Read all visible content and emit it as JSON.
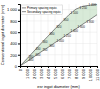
{
  "chart_data": {
    "type": "area",
    "xlabel": "esr ingot diameter (mm)",
    "ylabel": "Conventional ingot diameter (mm)",
    "x": [
      0,
      1000,
      2000,
      3000,
      4000,
      5000,
      6000,
      7000,
      8000,
      9000,
      10000,
      11000
    ],
    "series": [
      {
        "name": "Primary spacing equiv.",
        "color": "#555555",
        "values": [
          0,
          80,
          165,
          250,
          330,
          415,
          495,
          580,
          660,
          745,
          825,
          910
        ]
      },
      {
        "name": "Secondary spacing equiv.",
        "color": "#555555",
        "values": [
          0,
          130,
          265,
          400,
          530,
          660,
          785,
          910,
          1010,
          1060,
          1080,
          1095
        ]
      }
    ],
    "color": "#b8d8b8",
    "xlim": [
      0,
      11000
    ],
    "ylim": [
      0,
      1100
    ],
    "xticks": [
      0,
      {
        "value": 1000,
        "label": "1 000"
      },
      {
        "value": 2000,
        "label": "2 000"
      },
      {
        "value": 3000,
        "label": "3 000"
      },
      {
        "value": 4000,
        "label": "4 000"
      },
      {
        "value": 5000,
        "label": "5 000"
      },
      {
        "value": 6000,
        "label": "6 000"
      },
      {
        "value": 7000,
        "label": "7 000"
      },
      {
        "value": 8000,
        "label": "8 000"
      },
      {
        "value": 9000,
        "label": "9 000"
      },
      {
        "value": 10000,
        "label": "1 0000"
      },
      {
        "value": 11000,
        "label": "11 000"
      }
    ],
    "yticks": [
      0,
      200,
      400,
      600,
      800,
      {
        "value": 1000,
        "label": "1 000"
      }
    ],
    "annotations": [
      {
        "x": 1200,
        "y": 95,
        "text": "400"
      },
      {
        "x": 2200,
        "y": 178,
        "text": "600"
      },
      {
        "x": 3200,
        "y": 263,
        "text": "750"
      },
      {
        "x": 4200,
        "y": 345,
        "text": "900"
      },
      {
        "x": 5200,
        "y": 428,
        "text": "1 050"
      },
      {
        "x": 6200,
        "y": 510,
        "text": "1 250"
      },
      {
        "x": 7200,
        "y": 595,
        "text": "1 400"
      },
      {
        "x": 8200,
        "y": 675,
        "text": "1 600"
      },
      {
        "x": 9500,
        "y": 770,
        "text": "1 800"
      },
      {
        "x": 1200,
        "y": 145,
        "text": "280"
      },
      {
        "x": 2200,
        "y": 278,
        "text": "430"
      },
      {
        "x": 3200,
        "y": 413,
        "text": "560"
      },
      {
        "x": 4200,
        "y": 543,
        "text": "680"
      },
      {
        "x": 5200,
        "y": 673,
        "text": "820"
      },
      {
        "x": 6200,
        "y": 798,
        "text": "950"
      },
      {
        "x": 7200,
        "y": 923,
        "text": "1 100"
      },
      {
        "x": 8500,
        "y": 1020,
        "text": "1 250"
      },
      {
        "x": 9800,
        "y": 1070,
        "text": "1 400"
      }
    ],
    "grid": true,
    "legend": "upper left"
  }
}
